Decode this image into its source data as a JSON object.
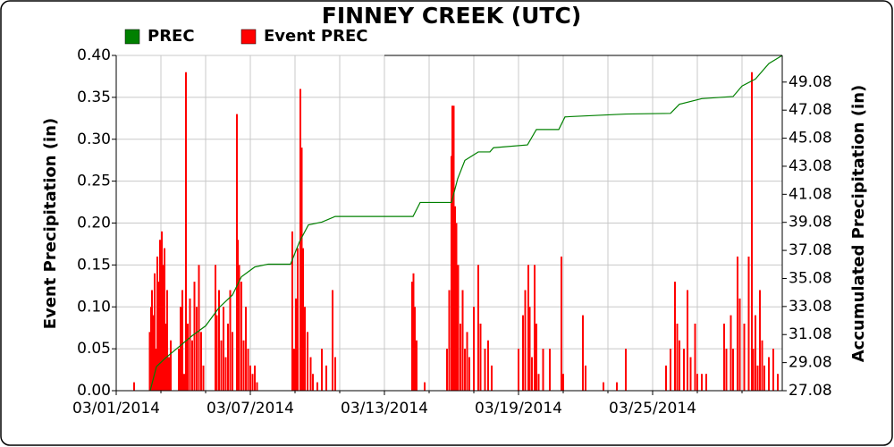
{
  "chart_data": {
    "type": "bar-line",
    "title": "FINNEY CREEK  (UTC)",
    "y_label": "Event Precipitation (in)",
    "y2_label": "Accumulated Precipitation (in)",
    "xlim": [
      1,
      30.8
    ],
    "xticks": [
      {
        "value": 1,
        "label": "03/01/2014"
      },
      {
        "value": 7,
        "label": "03/07/2014"
      },
      {
        "value": 13,
        "label": "03/13/2014"
      },
      {
        "value": 19,
        "label": "03/19/2014"
      },
      {
        "value": 25,
        "label": "03/25/2014"
      }
    ],
    "xminor": [
      3,
      5,
      9,
      11,
      15,
      17,
      21,
      23,
      27,
      29
    ],
    "ylim": [
      0,
      0.4
    ],
    "yticks": [
      {
        "value": 0,
        "label": "0.00"
      },
      {
        "value": 0.05,
        "label": "0.05"
      },
      {
        "value": 0.1,
        "label": "0.10"
      },
      {
        "value": 0.15,
        "label": "0.15"
      },
      {
        "value": 0.2,
        "label": "0.20"
      },
      {
        "value": 0.25,
        "label": "0.25"
      },
      {
        "value": 0.3,
        "label": "0.30"
      },
      {
        "value": 0.35,
        "label": "0.35"
      },
      {
        "value": 0.4,
        "label": "0.40"
      }
    ],
    "y2lim": [
      27.08,
      50.98
    ],
    "y2ticks": [
      27.08,
      29.08,
      31.08,
      33.08,
      35.08,
      37.08,
      39.08,
      41.08,
      43.08,
      45.08,
      47.08,
      49.08
    ],
    "grid": true,
    "series": [
      {
        "name": "PREC",
        "color": "#008000",
        "kind": "line",
        "axis": "y2",
        "x": [
          2.52,
          2.8,
          3.2,
          3.8,
          4.4,
          5.0,
          5.6,
          6.2,
          6.6,
          7.2,
          7.8,
          8.8,
          9.2,
          9.6,
          10.2,
          10.8,
          14.28,
          14.6,
          16.0,
          16.28,
          16.6,
          17.2,
          17.72,
          17.88,
          19.4,
          19.8,
          20.8,
          21.08,
          23.8,
          25.8,
          26.2,
          27.2,
          28.6,
          29.0,
          29.6,
          30.2,
          30.8
        ],
        "values": [
          27.08,
          28.8,
          29.4,
          30.2,
          31.0,
          31.7,
          33.0,
          33.9,
          35.2,
          35.9,
          36.1,
          36.1,
          37.7,
          38.9,
          39.1,
          39.5,
          39.5,
          40.5,
          40.5,
          42.2,
          43.5,
          44.1,
          44.1,
          44.4,
          44.6,
          45.7,
          45.7,
          46.6,
          46.8,
          46.85,
          47.5,
          47.9,
          48.05,
          48.8,
          49.3,
          50.4,
          50.98
        ]
      },
      {
        "name": "Event PREC",
        "color": "#ff0000",
        "kind": "bar",
        "x": [
          1.8,
          2.5,
          2.56,
          2.6,
          2.68,
          2.72,
          2.8,
          2.84,
          2.9,
          2.96,
          3.0,
          3.04,
          3.1,
          3.16,
          3.2,
          3.28,
          3.36,
          3.44,
          3.8,
          3.88,
          3.96,
          4.04,
          4.12,
          4.2,
          4.3,
          4.4,
          4.5,
          4.6,
          4.7,
          4.8,
          4.9,
          5.44,
          5.5,
          5.6,
          5.7,
          5.8,
          5.9,
          6.0,
          6.1,
          6.2,
          6.4,
          6.44,
          6.5,
          6.6,
          6.7,
          6.8,
          6.9,
          7.0,
          7.1,
          7.2,
          7.3,
          8.88,
          8.96,
          9.04,
          9.12,
          9.24,
          9.3,
          9.36,
          9.44,
          9.56,
          9.7,
          9.8,
          10.0,
          10.2,
          10.4,
          10.68,
          10.8,
          14.24,
          14.3,
          14.36,
          14.44,
          14.8,
          15.8,
          15.9,
          16.0,
          16.04,
          16.1,
          16.16,
          16.22,
          16.3,
          16.4,
          16.5,
          16.6,
          16.7,
          16.8,
          17.0,
          17.2,
          17.3,
          17.5,
          17.64,
          17.8,
          19.0,
          19.2,
          19.3,
          19.44,
          19.5,
          19.6,
          19.72,
          19.8,
          19.9,
          20.1,
          20.4,
          20.92,
          21.0,
          21.88,
          22.0,
          22.8,
          23.4,
          23.8,
          25.6,
          25.8,
          26.0,
          26.1,
          26.2,
          26.4,
          26.56,
          26.7,
          26.9,
          27.0,
          27.2,
          27.4,
          28.2,
          28.3,
          28.5,
          28.6,
          28.8,
          28.9,
          29.1,
          29.3,
          29.44,
          29.5,
          29.6,
          29.7,
          29.8,
          29.9,
          30.0,
          30.2,
          30.4,
          30.6
        ],
        "values": [
          0.01,
          0.07,
          0.1,
          0.12,
          0.09,
          0.14,
          0.05,
          0.16,
          0.13,
          0.18,
          0.12,
          0.19,
          0.15,
          0.17,
          0.08,
          0.12,
          0.04,
          0.06,
          0.05,
          0.1,
          0.12,
          0.02,
          0.38,
          0.08,
          0.11,
          0.06,
          0.13,
          0.1,
          0.15,
          0.07,
          0.03,
          0.15,
          0.09,
          0.12,
          0.06,
          0.1,
          0.04,
          0.08,
          0.12,
          0.07,
          0.33,
          0.18,
          0.15,
          0.13,
          0.06,
          0.1,
          0.05,
          0.03,
          0.02,
          0.03,
          0.01,
          0.19,
          0.05,
          0.11,
          0.17,
          0.36,
          0.29,
          0.17,
          0.1,
          0.07,
          0.04,
          0.02,
          0.01,
          0.05,
          0.03,
          0.12,
          0.04,
          0.13,
          0.14,
          0.1,
          0.06,
          0.01,
          0.05,
          0.12,
          0.28,
          0.34,
          0.34,
          0.22,
          0.2,
          0.15,
          0.08,
          0.12,
          0.05,
          0.07,
          0.04,
          0.1,
          0.15,
          0.08,
          0.05,
          0.06,
          0.03,
          0.05,
          0.09,
          0.12,
          0.15,
          0.1,
          0.04,
          0.15,
          0.08,
          0.02,
          0.05,
          0.05,
          0.16,
          0.02,
          0.09,
          0.03,
          0.01,
          0.01,
          0.05,
          0.03,
          0.05,
          0.13,
          0.08,
          0.06,
          0.05,
          0.12,
          0.04,
          0.08,
          0.02,
          0.02,
          0.02,
          0.08,
          0.05,
          0.09,
          0.05,
          0.16,
          0.11,
          0.08,
          0.16,
          0.38,
          0.05,
          0.09,
          0.03,
          0.12,
          0.06,
          0.03,
          0.04,
          0.05,
          0.02
        ]
      }
    ]
  }
}
